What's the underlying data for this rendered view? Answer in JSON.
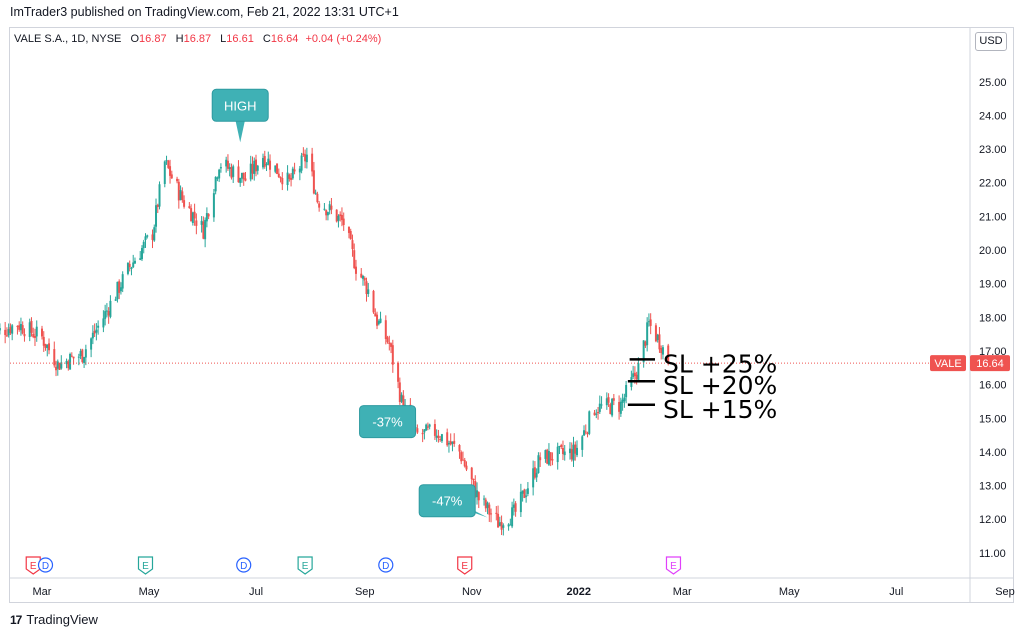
{
  "header": {
    "published_line": "ImTrader3 published on TradingView.com, Feb 21, 2022 13:31 UTC+1"
  },
  "legend": {
    "symbol": "VALE S.A., 1D, NYSE",
    "o_label": "O",
    "o_value": "16.87",
    "h_label": "H",
    "h_value": "16.87",
    "l_label": "L",
    "l_value": "16.61",
    "c_label": "C",
    "c_value": "16.64",
    "change": "+0.04 (+0.24%)"
  },
  "currency_button": "USD",
  "footer": {
    "logo_text": "TradingView",
    "logo_mark": "17"
  },
  "colors": {
    "up": "#26a69a",
    "down": "#ef5350",
    "callout": "#3fb1b5",
    "price_line": "#ef5350",
    "earnings": "#f23645",
    "dividend": "#2962ff"
  },
  "chart_data": {
    "type": "candlestick",
    "symbol": "VALE",
    "last_price": 16.64,
    "ylim": [
      10.6,
      26.2
    ],
    "y_ticks": [
      "11.00",
      "12.00",
      "13.00",
      "14.00",
      "15.00",
      "16.00",
      "17.00",
      "18.00",
      "19.00",
      "20.00",
      "21.00",
      "22.00",
      "23.00",
      "24.00",
      "25.00"
    ],
    "x_ticks": [
      "Mar",
      "May",
      "Jul",
      "Sep",
      "Nov",
      "2022",
      "Mar",
      "May",
      "Jul",
      "Sep"
    ],
    "x_tick_dates": [
      "2021-03-01",
      "2021-05-01",
      "2021-07-01",
      "2021-09-01",
      "2021-11-01",
      "2022-01-01",
      "2022-03-01",
      "2022-05-01",
      "2022-07-01",
      "2022-09-01"
    ],
    "price_path": [
      [
        "2021-02-01",
        17.5
      ],
      [
        "2021-02-15",
        17.8
      ],
      [
        "2021-03-01",
        17.4
      ],
      [
        "2021-03-10",
        16.6
      ],
      [
        "2021-03-24",
        16.9
      ],
      [
        "2021-04-05",
        18.0
      ],
      [
        "2021-04-20",
        19.5
      ],
      [
        "2021-05-03",
        20.5
      ],
      [
        "2021-05-10",
        22.6
      ],
      [
        "2021-05-20",
        21.5
      ],
      [
        "2021-06-01",
        20.6
      ],
      [
        "2021-06-10",
        22.6
      ],
      [
        "2021-06-25",
        22.1
      ],
      [
        "2021-07-05",
        22.8
      ],
      [
        "2021-07-20",
        22.0
      ],
      [
        "2021-07-30",
        22.8
      ],
      [
        "2021-08-05",
        21.5
      ],
      [
        "2021-08-20",
        20.8
      ],
      [
        "2021-08-27",
        19.5
      ],
      [
        "2021-09-03",
        18.8
      ],
      [
        "2021-09-08",
        17.9
      ],
      [
        "2021-09-15",
        17.2
      ],
      [
        "2021-09-22",
        15.5
      ],
      [
        "2021-09-30",
        14.5
      ],
      [
        "2021-10-12",
        14.6
      ],
      [
        "2021-10-25",
        14.0
      ],
      [
        "2021-11-05",
        12.6
      ],
      [
        "2021-11-16",
        11.9
      ],
      [
        "2021-11-26",
        12.2
      ],
      [
        "2021-12-10",
        13.8
      ],
      [
        "2021-12-30",
        14.0
      ],
      [
        "2022-01-10",
        15.3
      ],
      [
        "2022-01-25",
        15.4
      ],
      [
        "2022-02-04",
        16.5
      ],
      [
        "2022-02-10",
        17.8
      ],
      [
        "2022-02-17",
        17.2
      ],
      [
        "2022-02-21",
        16.64
      ]
    ],
    "events": [
      {
        "type": "earnings",
        "label": "E",
        "date": "2021-02-24"
      },
      {
        "type": "dividend",
        "label": "D",
        "date": "2021-03-03"
      },
      {
        "type": "earnings_past",
        "label": "E",
        "date": "2021-04-29"
      },
      {
        "type": "dividend",
        "label": "D",
        "date": "2021-06-24"
      },
      {
        "type": "earnings_past",
        "label": "E",
        "date": "2021-07-29"
      },
      {
        "type": "dividend",
        "label": "D",
        "date": "2021-09-13"
      },
      {
        "type": "earnings",
        "label": "E",
        "date": "2021-10-28"
      },
      {
        "type": "earnings_future",
        "label": "E",
        "date": "2022-02-24"
      }
    ],
    "annotations": [
      {
        "text": "HIGH",
        "date": "2021-06-22",
        "price": 24.3,
        "anchor_date": "2021-06-22",
        "anchor_price": 23.2
      },
      {
        "text": "-37%",
        "date": "2021-09-14",
        "price": 14.9,
        "anchor_date": "2021-09-27",
        "anchor_price": 14.6
      },
      {
        "text": "-47%",
        "date": "2021-10-18",
        "price": 12.55,
        "anchor_date": "2021-11-10",
        "anchor_price": 12.05
      }
    ],
    "stop_levels": [
      {
        "text": "SL +25%",
        "price": 16.75,
        "from_date": "2022-01-30"
      },
      {
        "text": "SL +20%",
        "price": 16.1,
        "from_date": "2022-01-29"
      },
      {
        "text": "SL +15%",
        "price": 15.4,
        "from_date": "2022-01-29"
      }
    ],
    "price_label": {
      "symbol": "VALE",
      "value": "16.64"
    }
  }
}
